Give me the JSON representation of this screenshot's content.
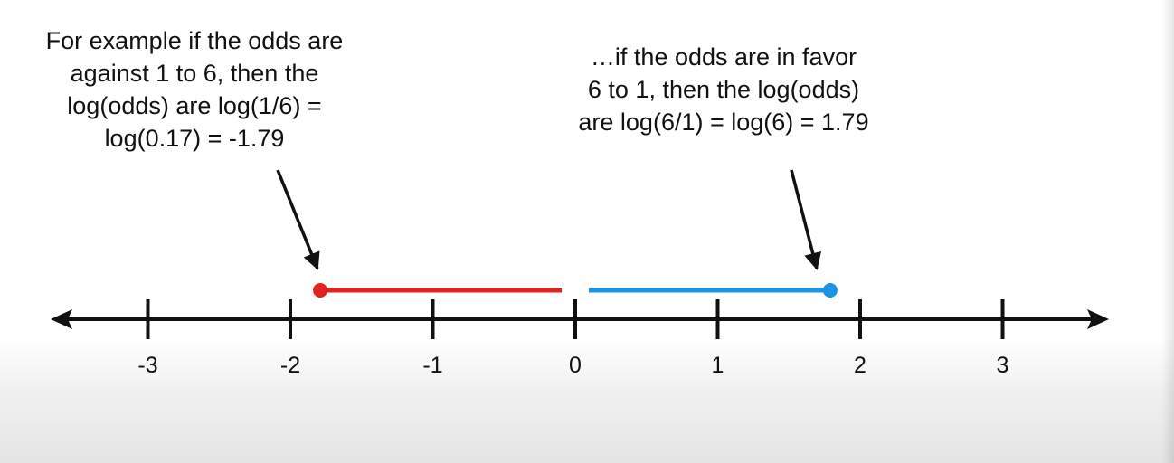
{
  "left_note": {
    "lines": [
      "For example if the odds are",
      "against 1 to 6, then the",
      "log(odds) are log(1/6) =",
      "log(0.17) = -1.79"
    ]
  },
  "right_note": {
    "lines": [
      "…if the odds are in favor",
      "6 to 1, then the log(odds)",
      "are log(6/1) = log(6) = 1.79"
    ]
  },
  "number_line": {
    "ticks": [
      "-3",
      "-2",
      "-1",
      "0",
      "1",
      "2",
      "3"
    ],
    "tick_values": [
      -3,
      -2,
      -1,
      0,
      1,
      2,
      3
    ]
  },
  "segments": [
    {
      "id": "against",
      "from": -1.79,
      "to": 0,
      "color": "#e0231c"
    },
    {
      "id": "favor",
      "from": 0,
      "to": 1.79,
      "color": "#1a93e8"
    }
  ],
  "colors": {
    "axis": "#111111",
    "text": "#111111",
    "against": "#e0231c",
    "favor": "#1a93e8"
  }
}
